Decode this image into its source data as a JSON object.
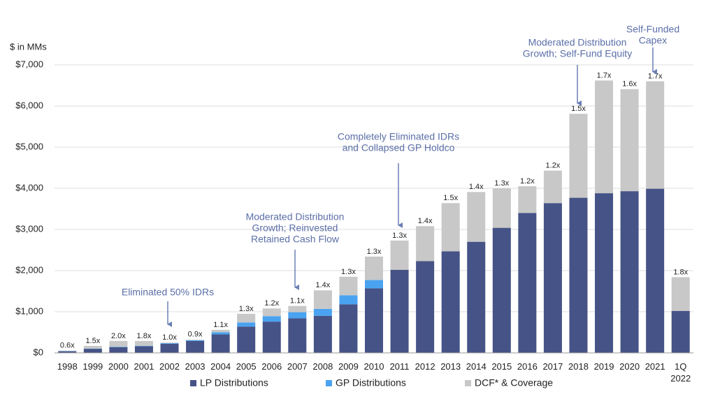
{
  "chart_data": {
    "type": "stacked-bar",
    "y_axis_label": "$ in MMs",
    "categories": [
      "1998",
      "1999",
      "2000",
      "2001",
      "2002",
      "2003",
      "2004",
      "2005",
      "2006",
      "2007",
      "2008",
      "2009",
      "2010",
      "2011",
      "2012",
      "2013",
      "2014",
      "2015",
      "2016",
      "2017",
      "2018",
      "2019",
      "2020",
      "2021",
      "1Q 2022"
    ],
    "series": [
      {
        "name": "LP Distributions",
        "color": "#465387",
        "values": [
          40,
          100,
          140,
          160,
          220,
          290,
          450,
          640,
          760,
          840,
          900,
          1180,
          1570,
          2020,
          2230,
          2470,
          2700,
          3040,
          3400,
          3640,
          3770,
          3880,
          3930,
          3990,
          1020
        ]
      },
      {
        "name": "GP Distributions",
        "color": "#4aa3f0",
        "values": [
          5,
          5,
          10,
          10,
          15,
          20,
          50,
          100,
          130,
          150,
          170,
          220,
          200,
          0,
          0,
          0,
          0,
          0,
          0,
          0,
          0,
          0,
          0,
          0,
          0
        ]
      },
      {
        "name": "DCF* & Coverage",
        "color": "#c8c8c8",
        "values": [
          10,
          65,
          140,
          120,
          15,
          10,
          60,
          210,
          190,
          150,
          450,
          450,
          570,
          710,
          850,
          1170,
          1210,
          960,
          650,
          790,
          2040,
          2740,
          2480,
          2610,
          820
        ]
      }
    ],
    "coverage_labels": [
      "0.6x",
      "1.5x",
      "2.0x",
      "1.8x",
      "1.0x",
      "0.9x",
      "1.1x",
      "1.3x",
      "1.2x",
      "1.1x",
      "1.4x",
      "1.3x",
      "1.3x",
      "1.3x",
      "1.4x",
      "1.5x",
      "1.4x",
      "1.3x",
      "1.2x",
      "1.2x",
      "1.5x",
      "1.7x",
      "1.6x",
      "1.7x",
      "1.8x"
    ],
    "annotations": [
      {
        "lines": [
          "Eliminated 50% IDRs"
        ]
      },
      {
        "lines": [
          "Moderated Distribution",
          "Growth; Reinvested",
          "Retained Cash Flow"
        ]
      },
      {
        "lines": [
          "Completely Eliminated IDRs",
          "and Collapsed GP Holdco"
        ]
      },
      {
        "lines": [
          "Moderated Distribution",
          "Growth; Self-Fund Equity"
        ]
      },
      {
        "lines": [
          "Self-Funded",
          "Capex"
        ]
      }
    ],
    "ylim": [
      0,
      7000
    ],
    "yticks": [
      {
        "value": 0,
        "label": "$0"
      },
      {
        "value": 1000,
        "label": "$1,000"
      },
      {
        "value": 2000,
        "label": "$2,000"
      },
      {
        "value": 3000,
        "label": "$3,000"
      },
      {
        "value": 4000,
        "label": "$4,000"
      },
      {
        "value": 5000,
        "label": "$5,000"
      },
      {
        "value": 6000,
        "label": "$6,000"
      },
      {
        "value": 7000,
        "label": "$7,000"
      }
    ],
    "grid": true
  }
}
